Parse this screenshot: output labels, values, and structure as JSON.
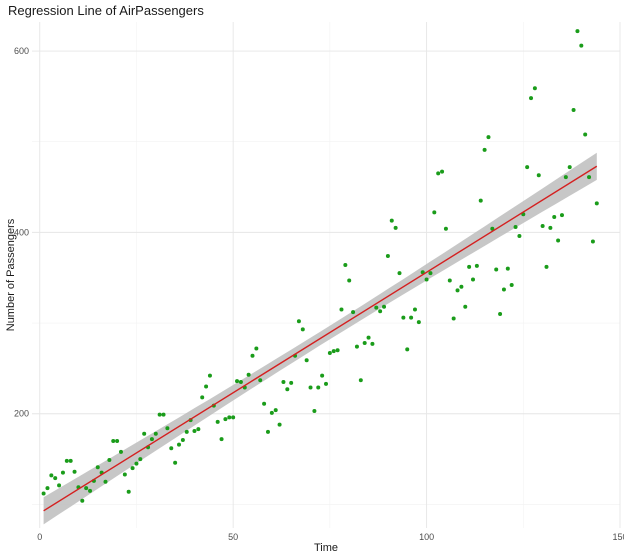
{
  "chart_data": {
    "type": "scatter",
    "title": "Regression Line of AirPassengers",
    "xlabel": "Time",
    "ylabel": "Number of Passengers",
    "xlim": [
      -2,
      150
    ],
    "ylim": [
      74,
      632
    ],
    "x_ticks": [
      0,
      50,
      100,
      150
    ],
    "y_ticks": [
      200,
      400,
      600
    ],
    "grid": true,
    "points_color": "#1a9c1a",
    "line_color": "#d42020",
    "band_color": "#bdbdbd",
    "x": [
      1,
      2,
      3,
      4,
      5,
      6,
      7,
      8,
      9,
      10,
      11,
      12,
      13,
      14,
      15,
      16,
      17,
      18,
      19,
      20,
      21,
      22,
      23,
      24,
      25,
      26,
      27,
      28,
      29,
      30,
      31,
      32,
      33,
      34,
      35,
      36,
      37,
      38,
      39,
      40,
      41,
      42,
      43,
      44,
      45,
      46,
      47,
      48,
      49,
      50,
      51,
      52,
      53,
      54,
      55,
      56,
      57,
      58,
      59,
      60,
      61,
      62,
      63,
      64,
      65,
      66,
      67,
      68,
      69,
      70,
      71,
      72,
      73,
      74,
      75,
      76,
      77,
      78,
      79,
      80,
      81,
      82,
      83,
      84,
      85,
      86,
      87,
      88,
      89,
      90,
      91,
      92,
      93,
      94,
      95,
      96,
      97,
      98,
      99,
      100,
      101,
      102,
      103,
      104,
      105,
      106,
      107,
      108,
      109,
      110,
      111,
      112,
      113,
      114,
      115,
      116,
      117,
      118,
      119,
      120,
      121,
      122,
      123,
      124,
      125,
      126,
      127,
      128,
      129,
      130,
      131,
      132,
      133,
      134,
      135,
      136,
      137,
      138,
      139,
      140,
      141,
      142,
      143,
      144
    ],
    "y": [
      112,
      118,
      132,
      129,
      121,
      135,
      148,
      148,
      136,
      119,
      104,
      118,
      115,
      126,
      141,
      135,
      125,
      149,
      170,
      170,
      158,
      133,
      114,
      140,
      145,
      150,
      178,
      163,
      172,
      178,
      199,
      199,
      184,
      162,
      146,
      166,
      171,
      180,
      193,
      181,
      183,
      218,
      230,
      242,
      209,
      191,
      172,
      194,
      196,
      196,
      236,
      235,
      229,
      243,
      264,
      272,
      237,
      211,
      180,
      201,
      204,
      188,
      235,
      227,
      234,
      264,
      302,
      293,
      259,
      229,
      203,
      229,
      242,
      233,
      267,
      269,
      270,
      315,
      364,
      347,
      312,
      274,
      237,
      278,
      284,
      277,
      317,
      313,
      318,
      374,
      413,
      405,
      355,
      306,
      271,
      306,
      315,
      301,
      356,
      348,
      355,
      422,
      465,
      467,
      404,
      347,
      305,
      336,
      340,
      318,
      362,
      348,
      363,
      435,
      491,
      505,
      404,
      359,
      310,
      337,
      360,
      342,
      406,
      396,
      420,
      472,
      548,
      559,
      463,
      407,
      362,
      405,
      417,
      391,
      419,
      461,
      472,
      535,
      622,
      606,
      508,
      461,
      390,
      432
    ],
    "regression": {
      "intercept": 90.31,
      "slope": 2.657,
      "band_halfwidth_ends": 15,
      "band_halfwidth_mid": 7.5
    }
  }
}
